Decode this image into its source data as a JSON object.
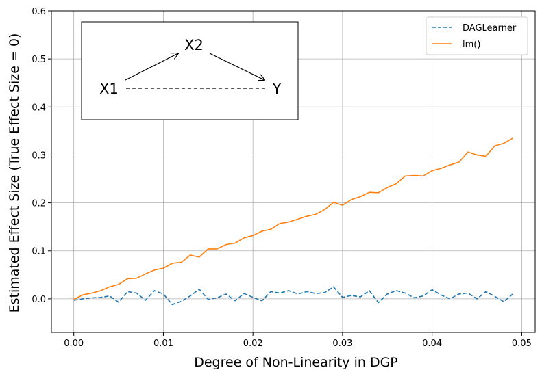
{
  "chart_data": {
    "type": "line",
    "title": "",
    "xlabel": "Degree of Non-Linearity in DGP",
    "ylabel": "Estimated Effect Size (True Effect Size = 0)",
    "xlim": [
      -0.0025,
      0.0515
    ],
    "ylim": [
      -0.07,
      0.6
    ],
    "x_ticks": [
      0.0,
      0.01,
      0.02,
      0.03,
      0.04,
      0.05
    ],
    "x_tick_labels": [
      "0.00",
      "0.01",
      "0.02",
      "0.03",
      "0.04",
      "0.05"
    ],
    "y_ticks": [
      0.0,
      0.1,
      0.2,
      0.3,
      0.4,
      0.5,
      0.6
    ],
    "y_tick_labels": [
      "0.0",
      "0.1",
      "0.2",
      "0.3",
      "0.4",
      "0.5",
      "0.6"
    ],
    "grid": true,
    "legend_position": "top-right",
    "x": [
      0.0,
      0.001,
      0.002,
      0.003,
      0.004,
      0.005,
      0.006,
      0.007,
      0.008,
      0.009,
      0.01,
      0.011,
      0.012,
      0.013,
      0.014,
      0.015,
      0.016,
      0.017,
      0.018,
      0.019,
      0.02,
      0.021,
      0.022,
      0.023,
      0.024,
      0.025,
      0.026,
      0.027,
      0.028,
      0.029,
      0.03,
      0.031,
      0.032,
      0.033,
      0.034,
      0.035,
      0.036,
      0.037,
      0.038,
      0.039,
      0.04,
      0.041,
      0.042,
      0.043,
      0.044,
      0.045,
      0.046,
      0.047,
      0.048,
      0.049
    ],
    "series": [
      {
        "name": "DAGLearner",
        "color": "#1f77b4",
        "style": "dashed",
        "values": [
          -0.003,
          0.0,
          0.002,
          0.003,
          0.006,
          -0.007,
          0.015,
          0.012,
          -0.003,
          0.017,
          0.01,
          -0.012,
          -0.005,
          0.006,
          0.02,
          -0.001,
          0.002,
          0.01,
          -0.004,
          0.011,
          0.003,
          -0.004,
          0.015,
          0.012,
          0.017,
          0.01,
          0.015,
          0.011,
          0.013,
          0.025,
          0.003,
          0.007,
          0.004,
          0.017,
          -0.008,
          0.01,
          0.017,
          0.012,
          0.002,
          0.006,
          0.019,
          0.008,
          0.0,
          0.01,
          0.012,
          0.0,
          0.015,
          0.005,
          -0.006,
          0.01
        ]
      },
      {
        "name": "lm()",
        "color": "#ff7f0e",
        "style": "solid",
        "values": [
          -0.001,
          0.008,
          0.012,
          0.017,
          0.025,
          0.03,
          0.042,
          0.043,
          0.052,
          0.06,
          0.064,
          0.074,
          0.076,
          0.091,
          0.087,
          0.104,
          0.104,
          0.113,
          0.116,
          0.127,
          0.132,
          0.141,
          0.145,
          0.157,
          0.16,
          0.166,
          0.172,
          0.176,
          0.186,
          0.201,
          0.195,
          0.207,
          0.213,
          0.222,
          0.221,
          0.232,
          0.24,
          0.256,
          0.257,
          0.256,
          0.267,
          0.272,
          0.279,
          0.285,
          0.306,
          0.3,
          0.297,
          0.319,
          0.324,
          0.335
        ]
      }
    ],
    "inset": {
      "nodes": [
        "X1",
        "X2",
        "Y"
      ]
    }
  }
}
